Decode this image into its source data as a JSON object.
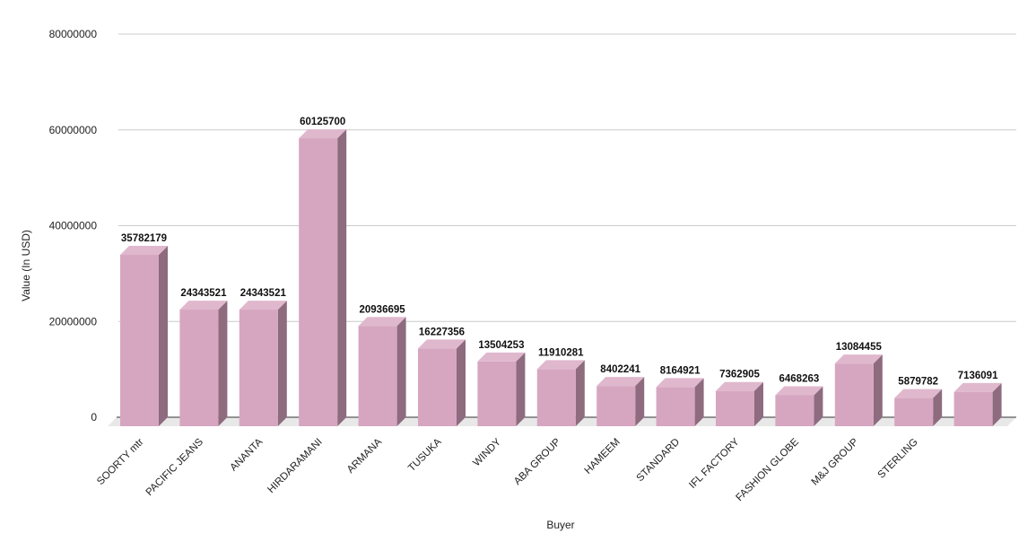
{
  "chart_data": {
    "type": "bar",
    "title": "",
    "xlabel": "Buyer",
    "ylabel": "Value (In USD)",
    "ylim": [
      0,
      80000000
    ],
    "yticks": [
      "0",
      "20000000",
      "40000000",
      "60000000",
      "80000000"
    ],
    "grid": true,
    "legend": "none",
    "categories": [
      "SOORTY  mtr",
      "PACIFIC JEANS",
      "ANANTA",
      "HIRDARAMANI",
      "ARMANA",
      "TUSUKA",
      "WINDY",
      "ABA GROUP",
      "HAMEEM",
      "STANDARD",
      "IFL FACTORY",
      "FASHION GLOBE",
      "M&J GROUP",
      "STERLING",
      ""
    ],
    "values": [
      35782179,
      24343521,
      24343521,
      60125700,
      20936695,
      16227356,
      13504253,
      11910281,
      8402241,
      8164921,
      7362905,
      6468263,
      13084455,
      5879782,
      7136091
    ],
    "data_labels": [
      "35782179",
      "24343521",
      "24343521",
      "60125700",
      "20936695",
      "16227356",
      "13504253",
      "11910281",
      "8402241",
      "8164921",
      "7362905",
      "6468263",
      "13084455",
      "5879782",
      "7136091"
    ],
    "colors": {
      "bar_front": "#d6a6c1",
      "bar_top": "#e0b8cd",
      "bar_side": "#8e6b7e",
      "floor": "#e8e8e8",
      "grid": "#cccccc"
    }
  }
}
